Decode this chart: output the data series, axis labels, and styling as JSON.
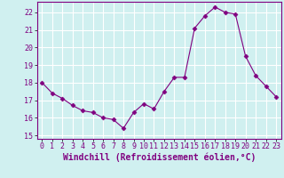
{
  "x": [
    0,
    1,
    2,
    3,
    4,
    5,
    6,
    7,
    8,
    9,
    10,
    11,
    12,
    13,
    14,
    15,
    16,
    17,
    18,
    19,
    20,
    21,
    22,
    23
  ],
  "y": [
    18.0,
    17.4,
    17.1,
    16.7,
    16.4,
    16.3,
    16.0,
    15.9,
    15.4,
    16.3,
    16.8,
    16.5,
    17.5,
    18.3,
    18.3,
    21.1,
    21.8,
    22.3,
    22.0,
    21.9,
    19.5,
    18.4,
    17.8,
    17.2
  ],
  "line_color": "#800080",
  "marker": "D",
  "marker_size": 2.5,
  "bg_color": "#d0f0f0",
  "grid_color": "#ffffff",
  "xlabel": "Windchill (Refroidissement éolien,°C)",
  "xlabel_fontsize": 7,
  "tick_fontsize": 6,
  "ylim": [
    14.8,
    22.6
  ],
  "yticks": [
    15,
    16,
    17,
    18,
    19,
    20,
    21,
    22
  ],
  "xlim": [
    -0.5,
    23.5
  ],
  "xticks": [
    0,
    1,
    2,
    3,
    4,
    5,
    6,
    7,
    8,
    9,
    10,
    11,
    12,
    13,
    14,
    15,
    16,
    17,
    18,
    19,
    20,
    21,
    22,
    23
  ]
}
